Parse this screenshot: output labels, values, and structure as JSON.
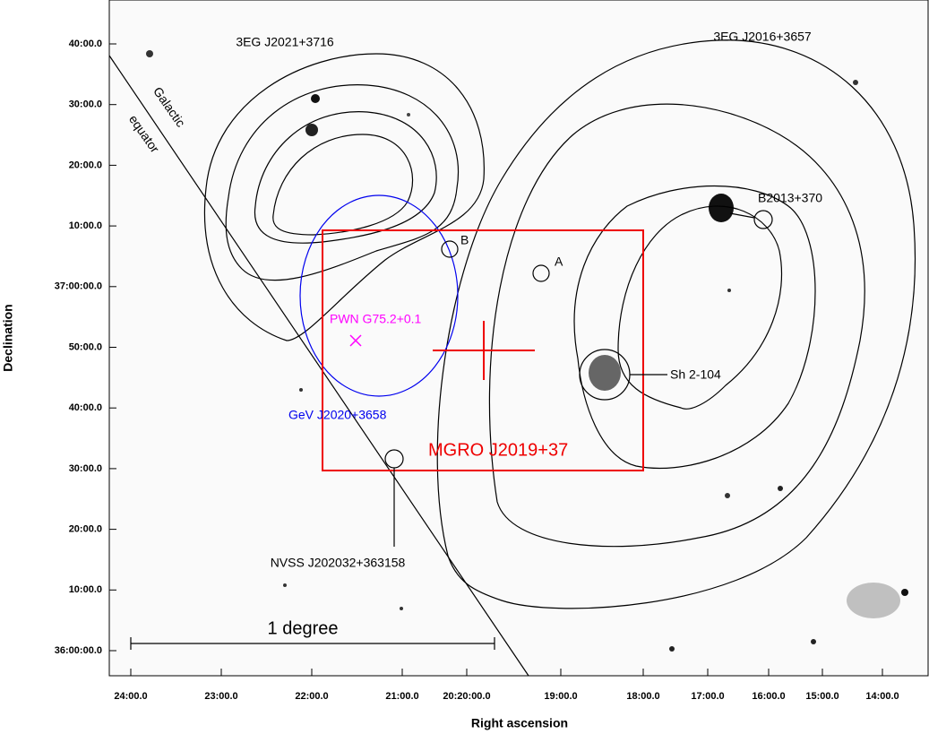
{
  "axes": {
    "x_label": "Right ascension",
    "y_label": "Declination",
    "x_ticks": [
      "24:00.0",
      "23:00.0",
      "22:00.0",
      "21:00.0",
      "20:20:00.0",
      "19:00.0",
      "18:00.0",
      "17:00.0",
      "16:00.0",
      "15:00.0",
      "14:00.0"
    ],
    "y_ticks": [
      "40:00.0",
      "30:00.0",
      "20:00.0",
      "10:00.0",
      "37:00:00.0",
      "50:00.0",
      "40:00.0",
      "30:00.0",
      "20:00.0",
      "10:00.0",
      "36:00:00.0"
    ]
  },
  "annotations": {
    "egret_1": "3EG J2021+3716",
    "egret_2": "3EG J2016+3657",
    "galactic_1": "Galactic",
    "galactic_2": "equator",
    "b2013": "B2013+370",
    "b": "B",
    "a": "A",
    "pwn": "PWN G75.2+0.1",
    "gev": "GeV J2020+3658",
    "mgro": "MGRO J2019+37",
    "sh": "Sh 2-104",
    "nvss": "NVSS J202032+363158",
    "scale": "1 degree"
  }
}
